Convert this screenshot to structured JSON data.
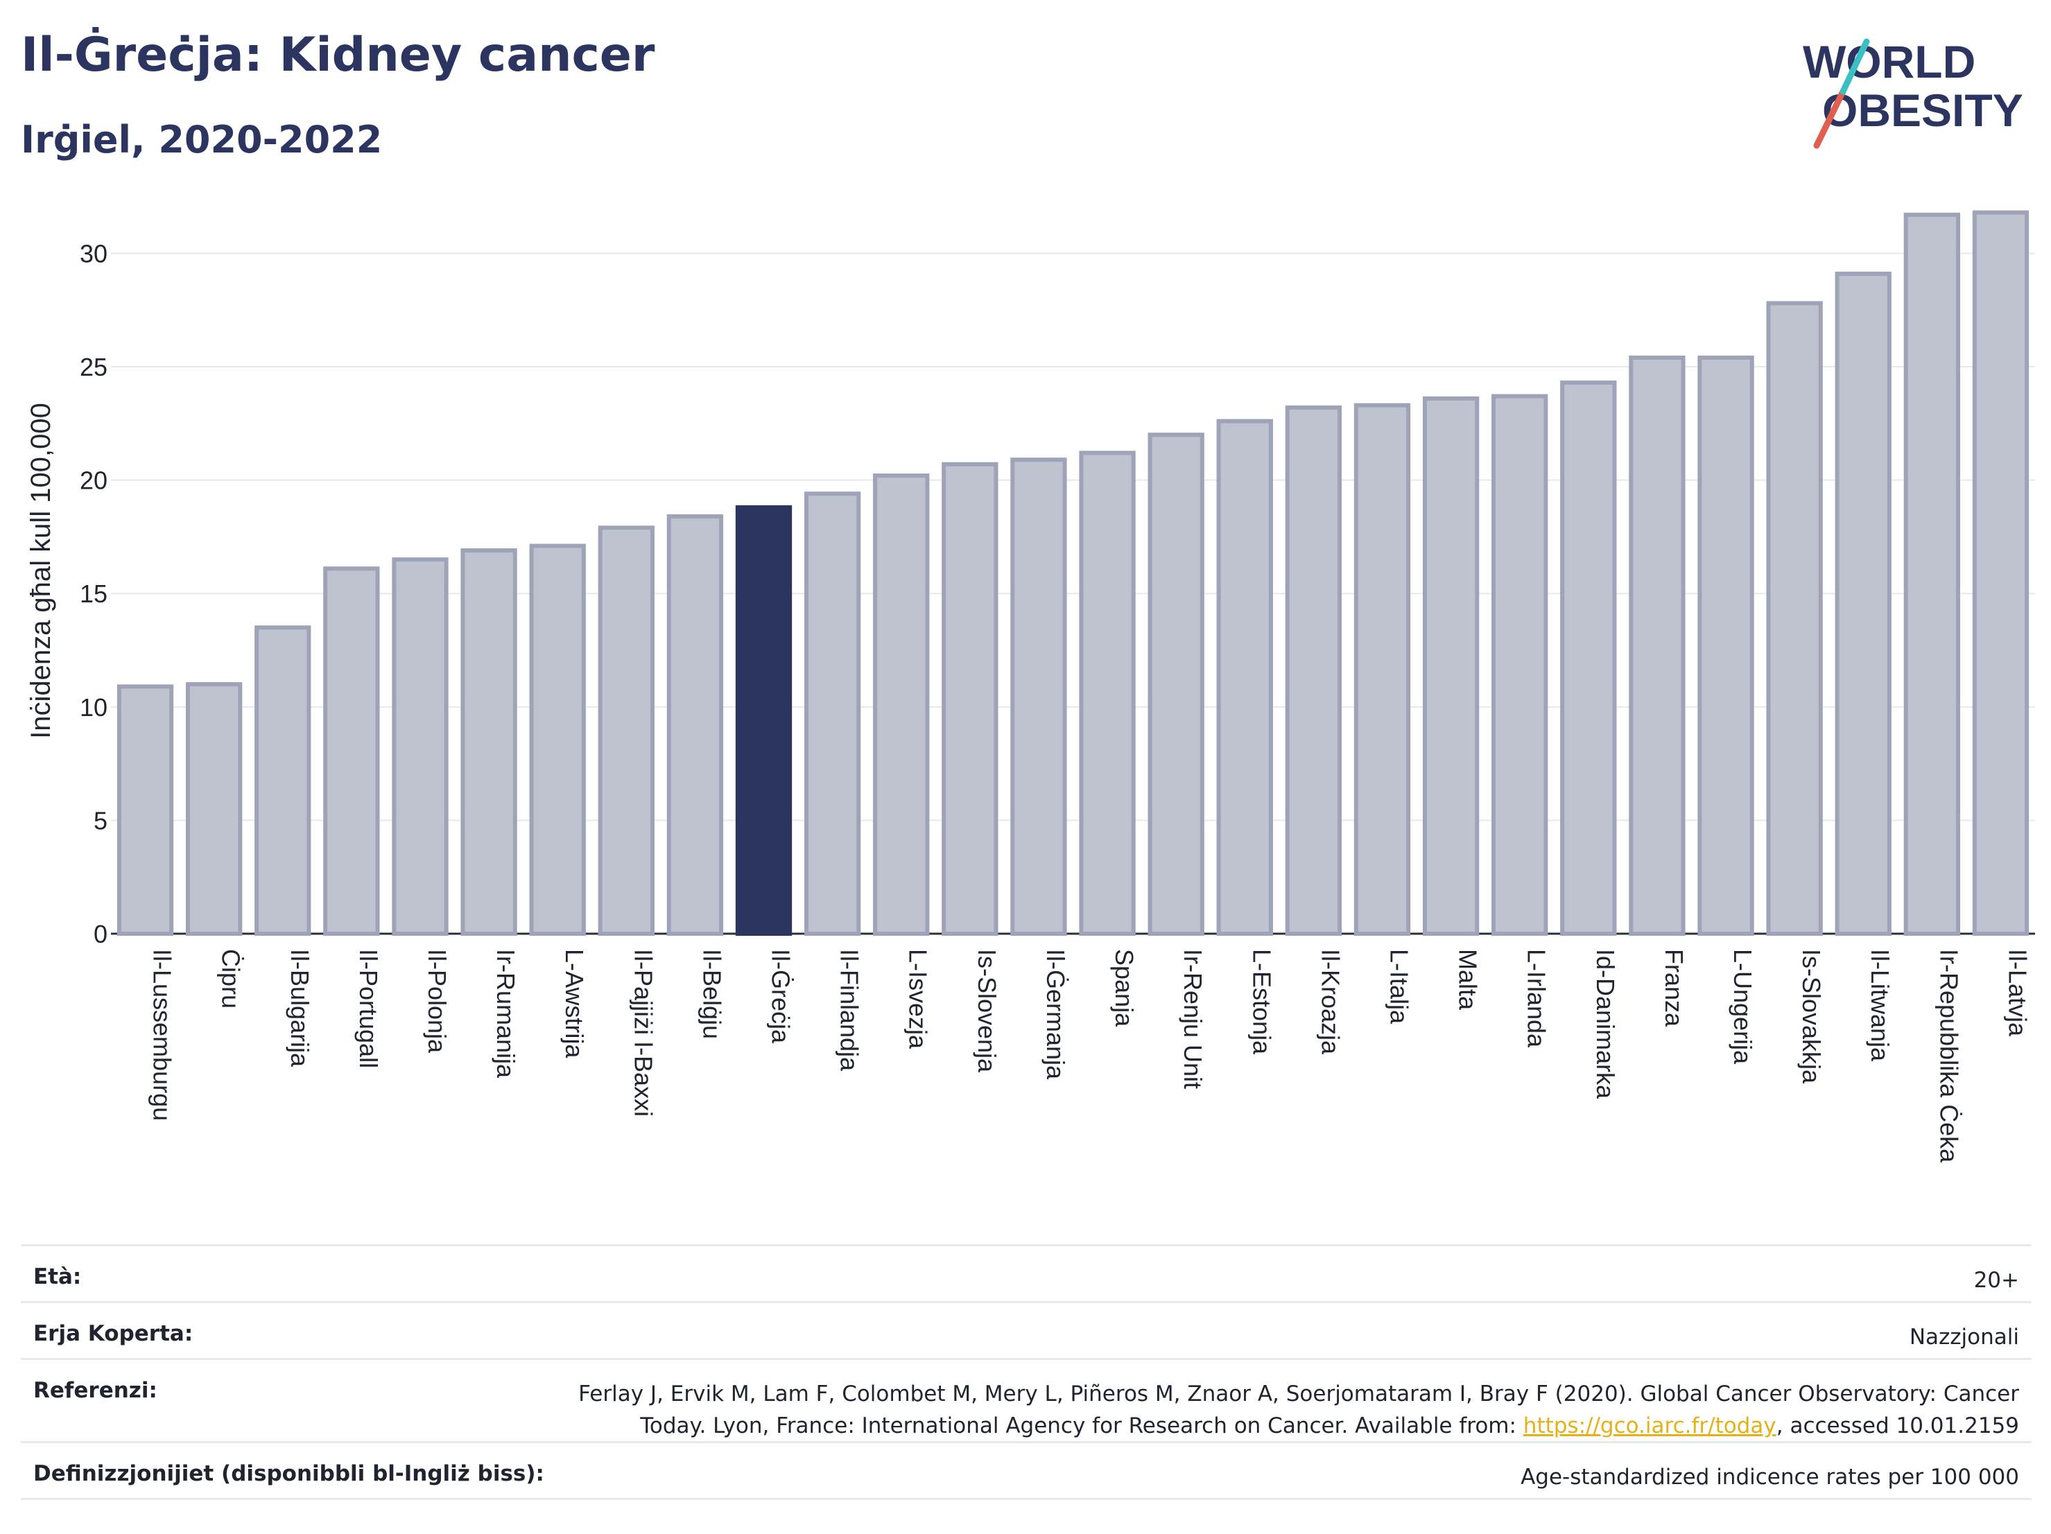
{
  "header": {
    "title": "Il-Ġreċja: Kidney cancer",
    "subtitle": "Irġiel, 2020-2022"
  },
  "logo": {
    "line1": "WORLD",
    "line2": "OBESITY",
    "colors": {
      "text": "#2b3560",
      "slash_red": "#e0604f",
      "slash_teal": "#3bbfc4"
    }
  },
  "chart_data": {
    "type": "bar",
    "ylabel": "Inċidenza għal kull 100,000",
    "ylim": [
      0,
      32
    ],
    "yticks": [
      0,
      5,
      10,
      15,
      20,
      25,
      30
    ],
    "highlight": "Il-Ġreċja",
    "colors": {
      "bar": "#bfc3cf",
      "bar_border": "#9ea3b8",
      "highlight": "#2b3560",
      "grid": "#e6e9ee"
    },
    "categories": [
      "Il-Lussemburgu",
      "Ċipru",
      "Il-Bulgarija",
      "Il-Portugall",
      "Il-Polonja",
      "Ir-Rumanija",
      "L-Awstrija",
      "Il-Pajjiżi l-Baxxi",
      "Il-Belġju",
      "Il-Ġreċja",
      "Il-Finlandja",
      "L-Isvezja",
      "Is-Slovenja",
      "Il-Ġermanja",
      "Spanja",
      "Ir-Renju Unit",
      "L-Estonja",
      "Il-Kroazja",
      "L-Italja",
      "Malta",
      "L-Irlanda",
      "Id-Danimarka",
      "Franza",
      "L-Ungerija",
      "Is-Slovakkja",
      "Il-Litwanja",
      "Ir-Repubblika Ċeka",
      "Il-Latvja"
    ],
    "values": [
      10.9,
      11.0,
      13.5,
      16.1,
      16.5,
      16.9,
      17.1,
      17.9,
      18.4,
      18.8,
      19.4,
      20.2,
      20.7,
      20.9,
      21.2,
      22.0,
      22.6,
      23.2,
      23.3,
      23.6,
      23.7,
      24.3,
      25.4,
      25.4,
      27.8,
      29.1,
      31.7,
      31.8
    ]
  },
  "meta": {
    "age_label": "Età:",
    "age_value": "20+",
    "area_label": "Erja Koperta:",
    "area_value": "Nazzjonali",
    "ref_label": "Referenzi:",
    "ref_text1": "Ferlay J, Ervik M, Lam F, Colombet M, Mery L, Piñeros M, Znaor A, Soerjomataram I, Bray F (2020). Global Cancer Observatory: Cancer Today. Lyon, France: International Agency for Research on Cancer. Available from: ",
    "ref_link": "https://gco.iarc.fr/today",
    "ref_text2": ", accessed 10.01.2159",
    "def_label": "Definizzjonijiet (disponibbli bl-Ingliż biss):",
    "def_value": "Age-standardized indicence rates per 100 000"
  }
}
